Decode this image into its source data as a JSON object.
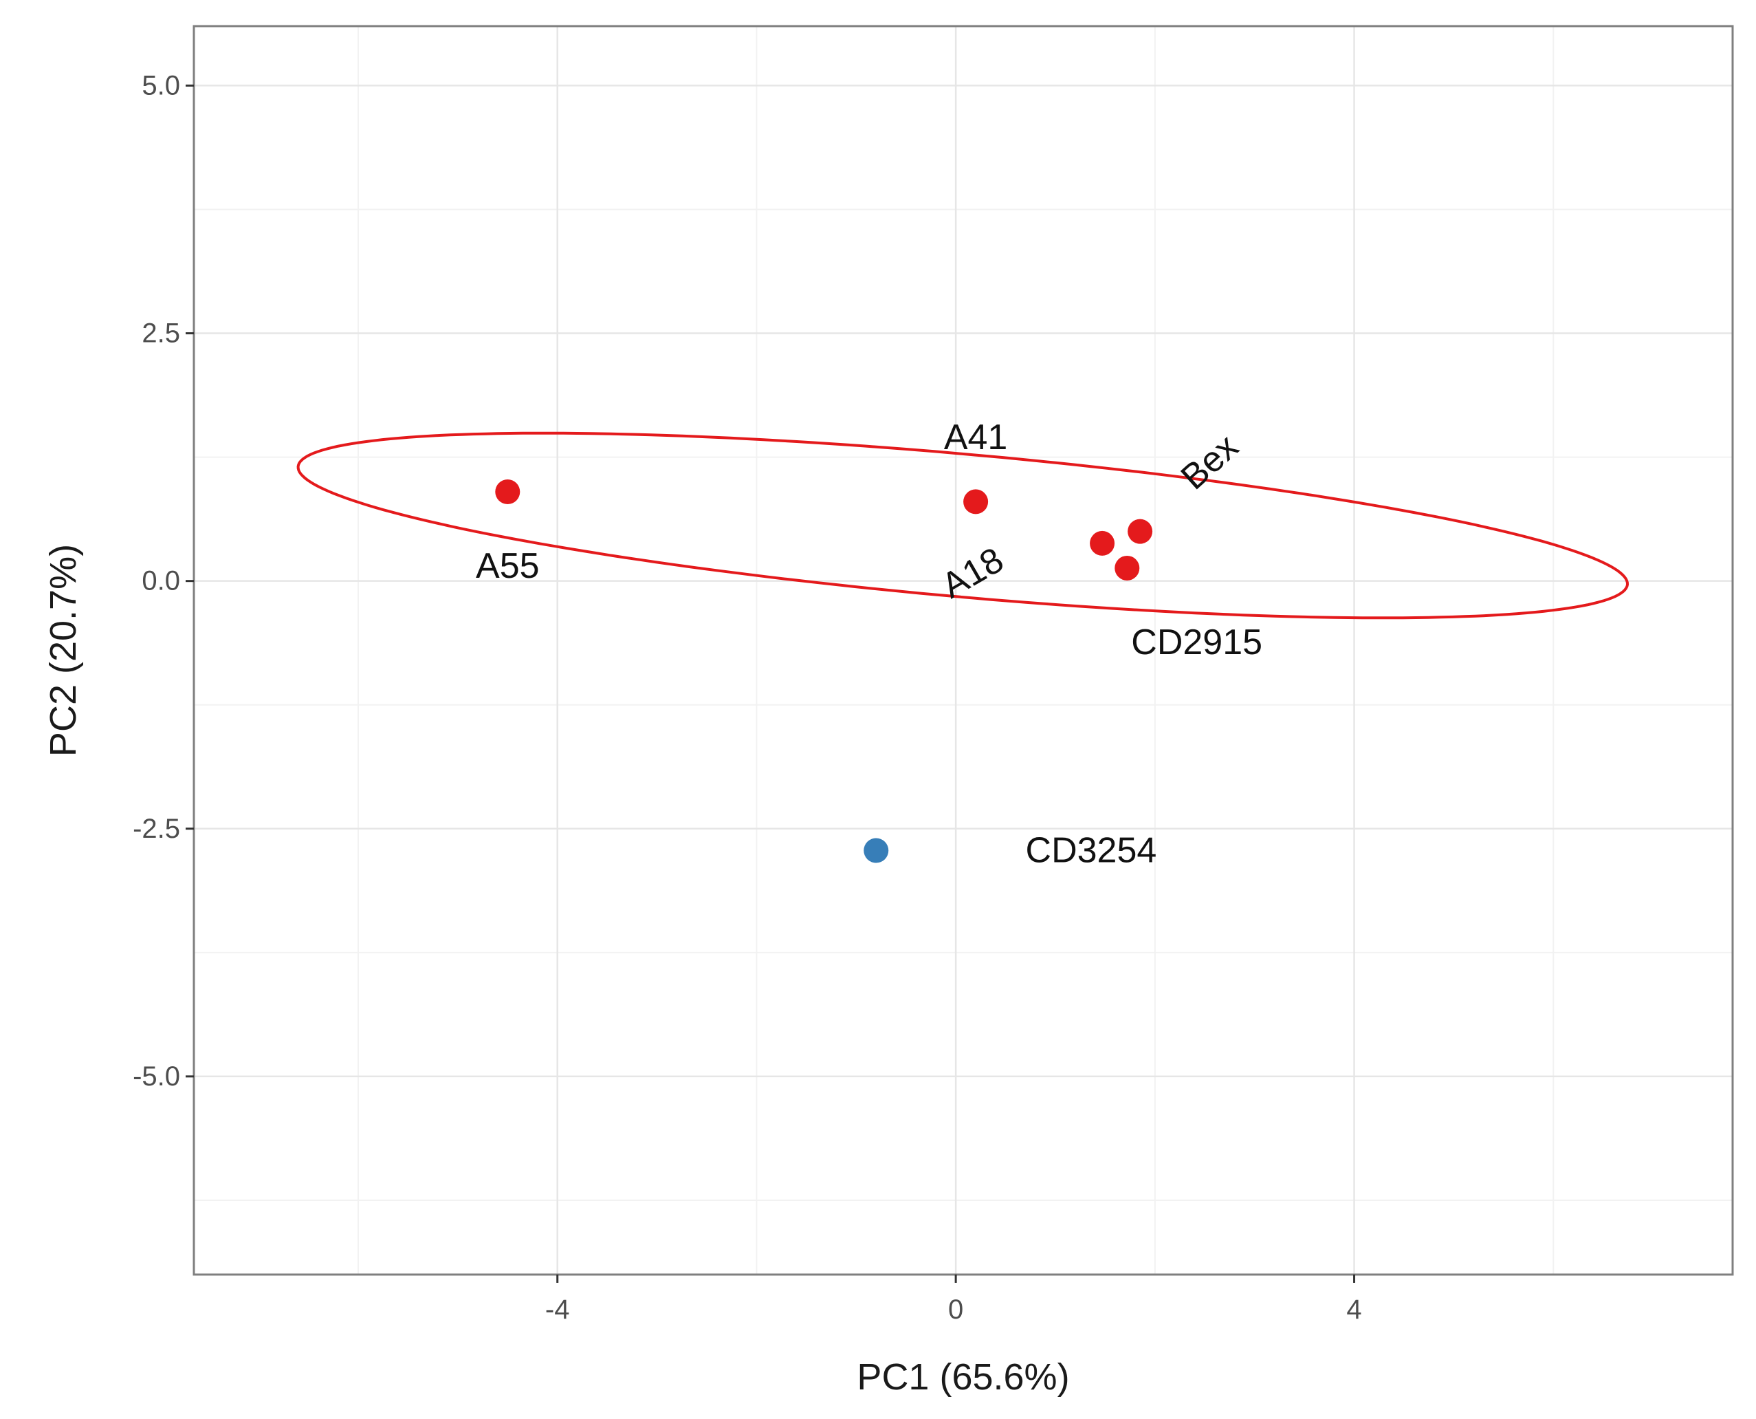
{
  "chart_data": {
    "type": "scatter",
    "xlabel": "PC1 (65.6%)",
    "ylabel": "PC2 (20.7%)",
    "xlim": [
      -7.65,
      7.8
    ],
    "ylim": [
      -7.0,
      5.6
    ],
    "x_ticks": [
      {
        "value": -4,
        "label": "-4"
      },
      {
        "value": 0,
        "label": "0"
      },
      {
        "value": 4,
        "label": "4"
      }
    ],
    "x_minor_gridlines": [
      -6,
      -2,
      2,
      6
    ],
    "y_ticks": [
      {
        "value": 5.0,
        "label": "5.0"
      },
      {
        "value": 2.5,
        "label": "2.5"
      },
      {
        "value": 0.0,
        "label": "0.0"
      },
      {
        "value": -2.5,
        "label": "-2.5"
      },
      {
        "value": -5.0,
        "label": "-5.0"
      }
    ],
    "y_minor_gridlines": [
      3.75,
      1.25,
      -1.25,
      -3.75,
      -6.25
    ],
    "grid": true,
    "legend": "none",
    "points": [
      {
        "label": "A55",
        "x": -4.5,
        "y": 0.9,
        "color": "#e41a1c",
        "label_dx": 0,
        "label_dy": 1.5,
        "label_rotate": 0
      },
      {
        "label": "A41",
        "x": 0.2,
        "y": 0.8,
        "color": "#e41a1c",
        "label_dx": 0,
        "label_dy": -1.3,
        "label_rotate": 0
      },
      {
        "label": "A18",
        "x": 1.47,
        "y": 0.38,
        "color": "#e41a1c",
        "label_dx": -1.3,
        "label_dy": 0.6,
        "label_rotate": -30
      },
      {
        "label": "Bex",
        "x": 1.85,
        "y": 0.5,
        "color": "#e41a1c",
        "label_dx": 0.7,
        "label_dy": -1.4,
        "label_rotate": -42
      },
      {
        "label": "CD2915",
        "x": 1.72,
        "y": 0.13,
        "color": "#e41a1c",
        "label_dx": 0.7,
        "label_dy": 1.5,
        "label_rotate": 0
      },
      {
        "label": "CD3254",
        "x": -0.8,
        "y": -2.72,
        "color": "#377eb8",
        "label_dx": 1.5,
        "label_dy": 0,
        "label_rotate": 0,
        "anchor": "start"
      }
    ],
    "ellipse": {
      "color": "#e41a1c",
      "center": [
        0.07,
        0.56
      ],
      "semi_axis_1": 6.7,
      "semi_axis_2": 0.72,
      "angle_deg": -5.1
    }
  }
}
